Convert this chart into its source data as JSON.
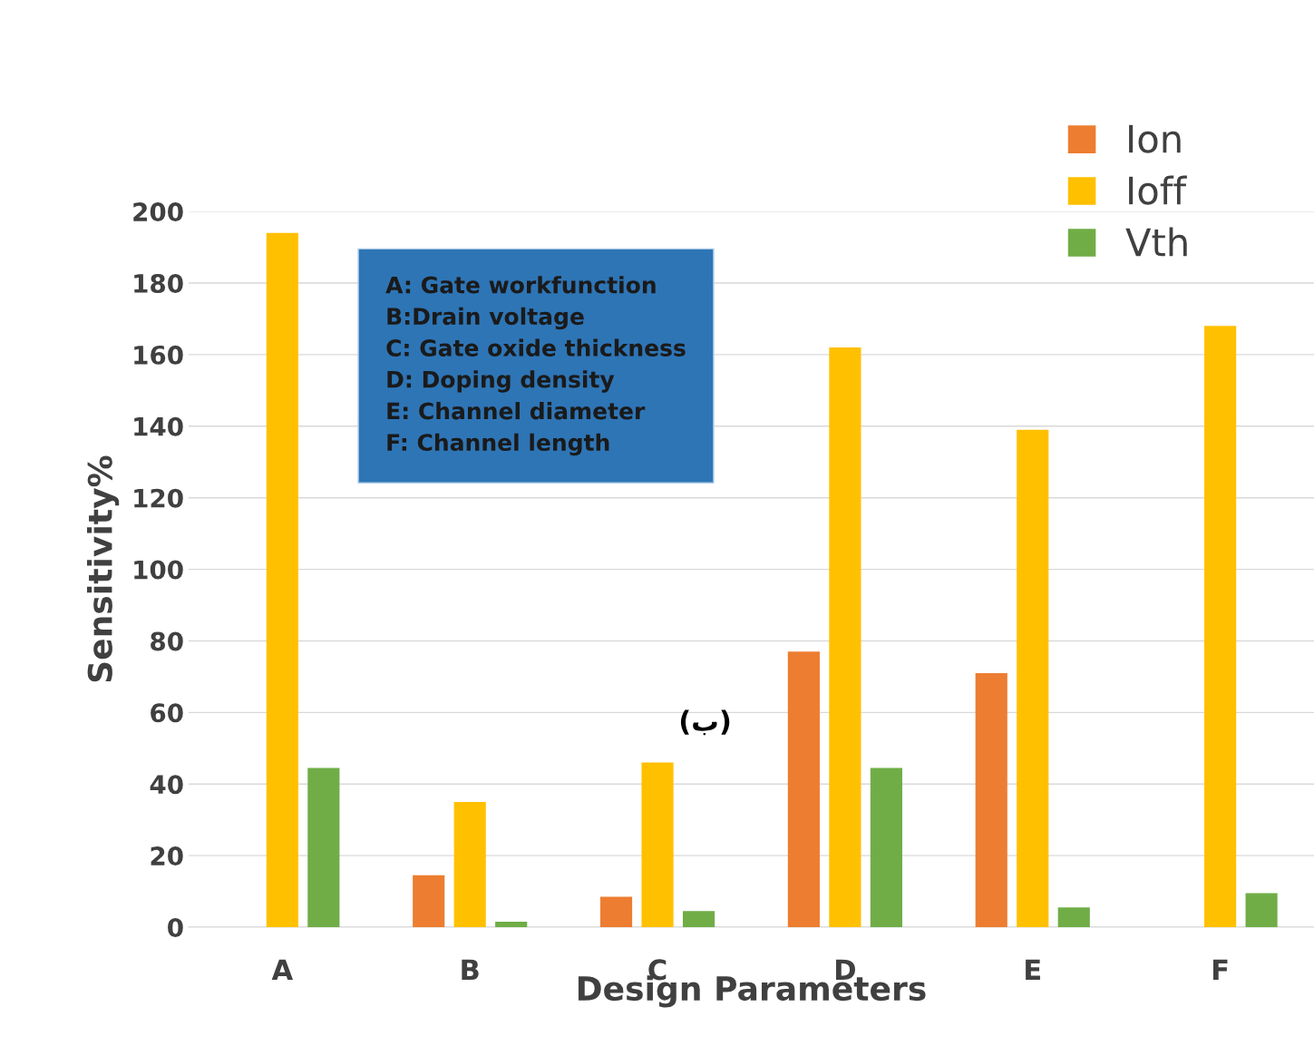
{
  "chart_data": {
    "type": "bar",
    "xlabel": "Design Parameters",
    "ylabel": "Sensitivity%",
    "categories": [
      "A",
      "B",
      "C",
      "D",
      "E",
      "F"
    ],
    "series": [
      {
        "name": "Ion",
        "color": "#ed7d31",
        "values": [
          null,
          14.5,
          8.5,
          77,
          71,
          null
        ]
      },
      {
        "name": "Ioff",
        "color": "#ffc000",
        "values": [
          194,
          35,
          46,
          162,
          139,
          168
        ]
      },
      {
        "name": "Vth",
        "color": "#70ad47",
        "values": [
          44.5,
          1.5,
          4.5,
          44.5,
          5.5,
          9.5
        ]
      }
    ],
    "ylim": [
      0,
      200
    ],
    "yticks": [
      0,
      20,
      40,
      60,
      80,
      100,
      120,
      140,
      160,
      180,
      200
    ],
    "grid": "y",
    "legend": "top right",
    "annotations": [
      "A: Gate workfunction\nB:Drain voltage\nC: Gate oxide thickness\nD: Doping density\nE: Channel diameter\nF: Channel length",
      "(ب)"
    ]
  }
}
